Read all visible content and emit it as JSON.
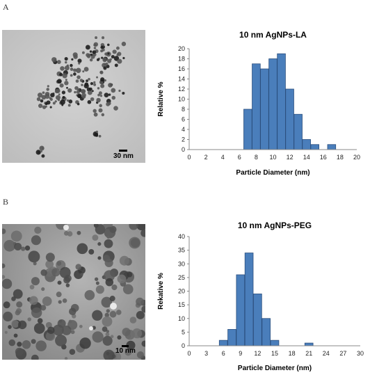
{
  "panels": {
    "a_letter": "A",
    "b_letter": "B",
    "a_scale_label": "30 nm",
    "b_scale_label": "10 nm"
  },
  "chart_data": [
    {
      "type": "bar",
      "title": "10 nm AgNPs-LA",
      "xlabel": "Particle Diameter (nm)",
      "ylabel": "Relative %",
      "x": [
        7,
        8,
        9,
        10,
        11,
        12,
        13,
        14,
        15,
        17
      ],
      "values": [
        8,
        17,
        16,
        18,
        19,
        12,
        7,
        2,
        1,
        1
      ],
      "xlim": [
        0,
        20
      ],
      "ylim": [
        0,
        20
      ],
      "xticks": [
        0,
        2,
        4,
        6,
        8,
        10,
        12,
        14,
        16,
        18,
        20
      ],
      "yticks": [
        0,
        2,
        4,
        6,
        8,
        10,
        12,
        14,
        16,
        18,
        20
      ],
      "bar_color": "#4a7ebb",
      "grid": false
    },
    {
      "type": "bar",
      "title": "10 nm AgNPs-PEG",
      "xlabel": "Particle Diameter (nm)",
      "ylabel": "Rekative %",
      "x": [
        6,
        7.5,
        9,
        10.5,
        12,
        13.5,
        15,
        21
      ],
      "values": [
        2,
        6,
        26,
        34,
        19,
        10,
        2,
        1
      ],
      "xlim": [
        0,
        30
      ],
      "ylim": [
        0,
        40
      ],
      "xticks": [
        0,
        3,
        6,
        9,
        12,
        15,
        18,
        21,
        24,
        27,
        30
      ],
      "yticks": [
        0,
        5,
        10,
        15,
        20,
        25,
        30,
        35,
        40
      ],
      "bar_color": "#4a7ebb",
      "grid": false
    }
  ]
}
